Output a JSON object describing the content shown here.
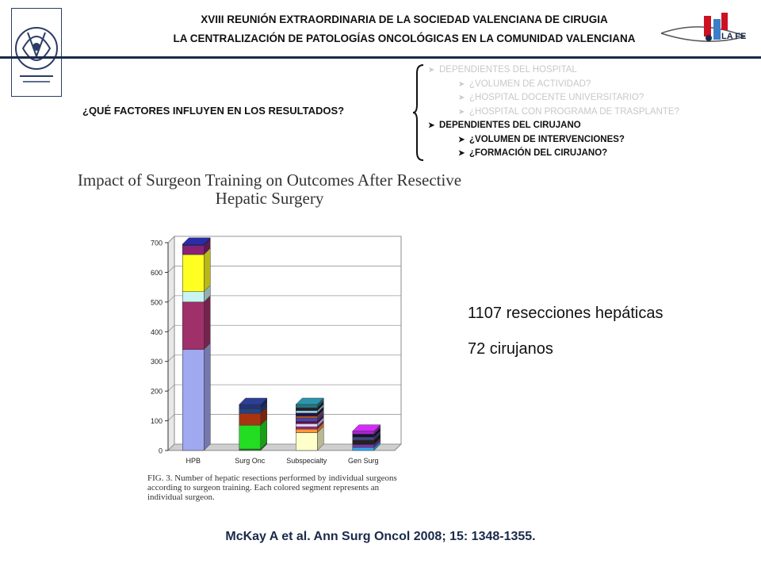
{
  "header": {
    "line1": "XVIII REUNIÓN EXTRAORDINARIA DE LA SOCIEDAD VALENCIANA DE CIRUGIA",
    "line2": "LA CENTRALIZACIÓN DE PATOLOGÍAS ONCOLÓGICAS EN LA COMUNIDAD VALENCIANA",
    "right_logo_text": "LA FE"
  },
  "question": "¿QUÉ FACTORES INFLUYEN EN LOS RESULTADOS?",
  "bullets": [
    {
      "text": "DEPENDIENTES DEL HOSPITAL",
      "level": 1,
      "style": "faded"
    },
    {
      "text": "¿VOLUMEN DE ACTIVIDAD?",
      "level": 2,
      "style": "faded"
    },
    {
      "text": "¿HOSPITAL DOCENTE UNIVERSITARIO?",
      "level": 2,
      "style": "faded"
    },
    {
      "text": "¿HOSPITAL CON PROGRAMA DE TRASPLANTE?",
      "level": 2,
      "style": "faded"
    },
    {
      "text": "DEPENDIENTES DEL CIRUJANO",
      "level": 1,
      "style": "strong"
    },
    {
      "text": "¿VOLUMEN DE INTERVENCIONES?",
      "level": 2,
      "style": "strong"
    },
    {
      "text": "¿FORMACIÓN DEL CIRUJANO?",
      "level": 2,
      "style": "strong"
    }
  ],
  "chart_data": {
    "type": "bar",
    "stacked": true,
    "title_line1": "Impact of Surgeon Training on Outcomes After Resective",
    "title_line2": "Hepatic Surgery",
    "categories": [
      "HPB",
      "Surg Onc",
      "Subspecialty",
      "Gen Surg"
    ],
    "ylim": [
      0,
      700
    ],
    "yticks": [
      0,
      100,
      200,
      300,
      400,
      500,
      600,
      700
    ],
    "segments": [
      [
        {
          "value": 340,
          "color": "#a0a8f0"
        },
        {
          "value": 160,
          "color": "#a0306a"
        },
        {
          "value": 35,
          "color": "#c8f4f4"
        },
        {
          "value": 125,
          "color": "#ffff22"
        },
        {
          "value": 30,
          "color": "#882277"
        },
        {
          "value": 5,
          "color": "#22228a"
        }
      ],
      [
        {
          "value": 5,
          "color": "#228822"
        },
        {
          "value": 80,
          "color": "#22dd22"
        },
        {
          "value": 40,
          "color": "#aa3311"
        },
        {
          "value": 15,
          "color": "#224488"
        },
        {
          "value": 15,
          "color": "#223377"
        }
      ],
      [
        {
          "value": 60,
          "color": "#ffffcc"
        },
        {
          "value": 12,
          "color": "#ff9933"
        },
        {
          "value": 8,
          "color": "#aa2277"
        },
        {
          "value": 10,
          "color": "#ddddff"
        },
        {
          "value": 8,
          "color": "#661144"
        },
        {
          "value": 10,
          "color": "#4444cc"
        },
        {
          "value": 8,
          "color": "#aa5522"
        },
        {
          "value": 10,
          "color": "#221144"
        },
        {
          "value": 8,
          "color": "#99ddff"
        },
        {
          "value": 10,
          "color": "#222222"
        },
        {
          "value": 11,
          "color": "#227788"
        }
      ],
      [
        {
          "value": 10,
          "color": "#33aaee"
        },
        {
          "value": 10,
          "color": "#7733aa"
        },
        {
          "value": 15,
          "color": "#222222"
        },
        {
          "value": 10,
          "color": "#444488"
        },
        {
          "value": 10,
          "color": "#111133"
        },
        {
          "value": 10,
          "color": "#aa22cc"
        }
      ]
    ],
    "caption": "FIG. 3. Number of hepatic resections performed by individual surgeons according to surgeon training. Each colored segment represents an individual surgeon.",
    "grid": true
  },
  "stats": {
    "resections": "1107 resecciones hepáticas",
    "surgeons": "72 cirujanos"
  },
  "citation": "McKay A et al. Ann Surg Oncol 2008; 15: 1348-1355."
}
